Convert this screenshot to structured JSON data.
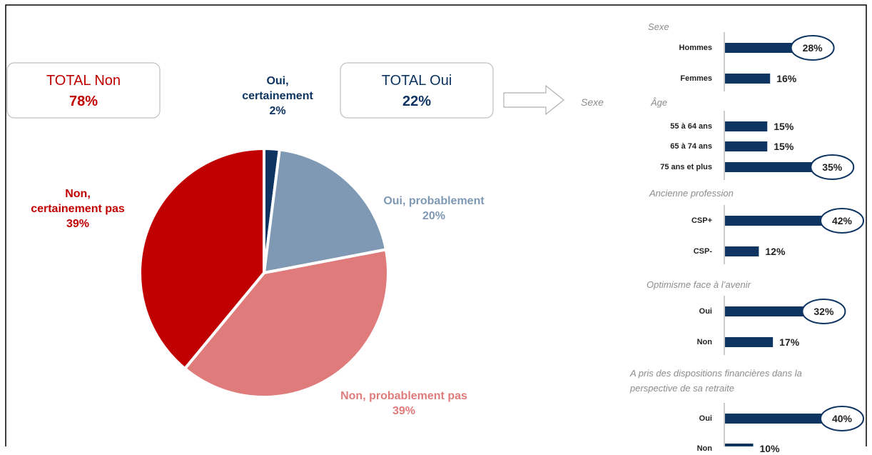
{
  "chart_data": [
    {
      "type": "pie",
      "categories": [
        "Oui,\ncertainement",
        "Oui, probablement",
        "Non, probablement pas",
        "Non,\ncertainement pas"
      ],
      "values": [
        2,
        20,
        39,
        39
      ],
      "value_labels": [
        "2%",
        "20%",
        "39%",
        "39%"
      ],
      "colors": [
        "#0e3461",
        "#7f99b4",
        "#e07b7b",
        "#c00000"
      ],
      "totals": [
        {
          "title": "TOTAL Non",
          "text": "78%",
          "color": "#c00000"
        },
        {
          "title": "TOTAL Oui",
          "text": "22%",
          "color": "#0e3461"
        }
      ],
      "arrow_label": "Sexe"
    },
    {
      "type": "hbar",
      "title": "Sexe",
      "categories": [
        "Hommes",
        "Femmes"
      ],
      "values": [
        28,
        16
      ],
      "value_labels": [
        "28%",
        "16%"
      ],
      "highlight": [
        0
      ],
      "color": "#0e3461"
    },
    {
      "type": "hbar",
      "title": "Âge",
      "categories": [
        "55 à 64 ans",
        "65 à 74 ans",
        "75 ans et plus"
      ],
      "values": [
        15,
        15,
        35
      ],
      "value_labels": [
        "15%",
        "15%",
        "35%"
      ],
      "highlight": [
        2
      ],
      "color": "#0e3461"
    },
    {
      "type": "hbar",
      "title": "Ancienne profession",
      "categories": [
        "CSP+",
        "CSP-"
      ],
      "values": [
        42,
        12
      ],
      "value_labels": [
        "42%",
        "12%"
      ],
      "highlight": [
        0
      ],
      "color": "#0e3461"
    },
    {
      "type": "hbar",
      "title": "Optimisme face à l’avenir",
      "categories": [
        "Oui",
        "Non"
      ],
      "values": [
        32,
        17
      ],
      "value_labels": [
        "32%",
        "17%"
      ],
      "highlight": [
        0
      ],
      "color": "#0e3461"
    },
    {
      "type": "hbar",
      "title": "A pris des dispositions financières dans la\nperspective de sa retraite",
      "categories": [
        "Oui",
        "Non"
      ],
      "values": [
        40,
        10
      ],
      "value_labels": [
        "40%",
        "10%"
      ],
      "highlight": [
        0
      ],
      "color": "#0e3461"
    }
  ]
}
